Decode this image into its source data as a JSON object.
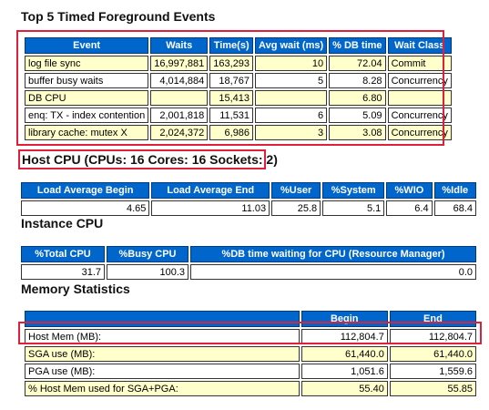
{
  "sections": {
    "top5_title": "Top 5 Timed Foreground Events",
    "host_cpu_title": "Host CPU (CPUs: 16 Cores: 16 Sockets: 2)",
    "instance_cpu_title": "Instance CPU",
    "memory_title": "Memory Statistics"
  },
  "top5": {
    "headers": [
      "Event",
      "Waits",
      "Time(s)",
      "Avg wait (ms)",
      "% DB time",
      "Wait Class"
    ],
    "rows": [
      [
        "log file sync",
        "16,997,881",
        "163,293",
        "10",
        "72.04",
        "Commit"
      ],
      [
        "buffer busy waits",
        "4,014,884",
        "18,767",
        "5",
        "8.28",
        "Concurrency"
      ],
      [
        "DB CPU",
        "",
        "15,413",
        "",
        "6.80",
        ""
      ],
      [
        "enq: TX - index contention",
        "2,001,818",
        "11,531",
        "6",
        "5.09",
        "Concurrency"
      ],
      [
        "library cache: mutex X",
        "2,024,372",
        "6,986",
        "3",
        "3.08",
        "Concurrency"
      ]
    ]
  },
  "host_cpu": {
    "headers": [
      "Load Average Begin",
      "Load Average End",
      "%User",
      "%System",
      "%WIO",
      "%Idle"
    ],
    "row": [
      "4.65",
      "11.03",
      "25.8",
      "5.1",
      "6.4",
      "68.4"
    ]
  },
  "instance_cpu": {
    "headers": [
      "%Total CPU",
      "%Busy CPU",
      "%DB time waiting for CPU (Resource Manager)"
    ],
    "row": [
      "31.7",
      "100.3",
      "0.0"
    ]
  },
  "memory": {
    "headers": [
      "",
      "Begin",
      "End"
    ],
    "rows": [
      [
        "Host Mem (MB):",
        "112,804.7",
        "112,804.7"
      ],
      [
        "SGA use (MB):",
        "61,440.0",
        "61,440.0"
      ],
      [
        "PGA use (MB):",
        "1,051.6",
        "1,559.6"
      ],
      [
        "% Host Mem used for SGA+PGA:",
        "55.40",
        "55.85"
      ]
    ]
  },
  "colors": {
    "header_bg": "#0066cc",
    "alt_row_bg": "#ffffcc",
    "highlight_box": "#e0203a"
  }
}
